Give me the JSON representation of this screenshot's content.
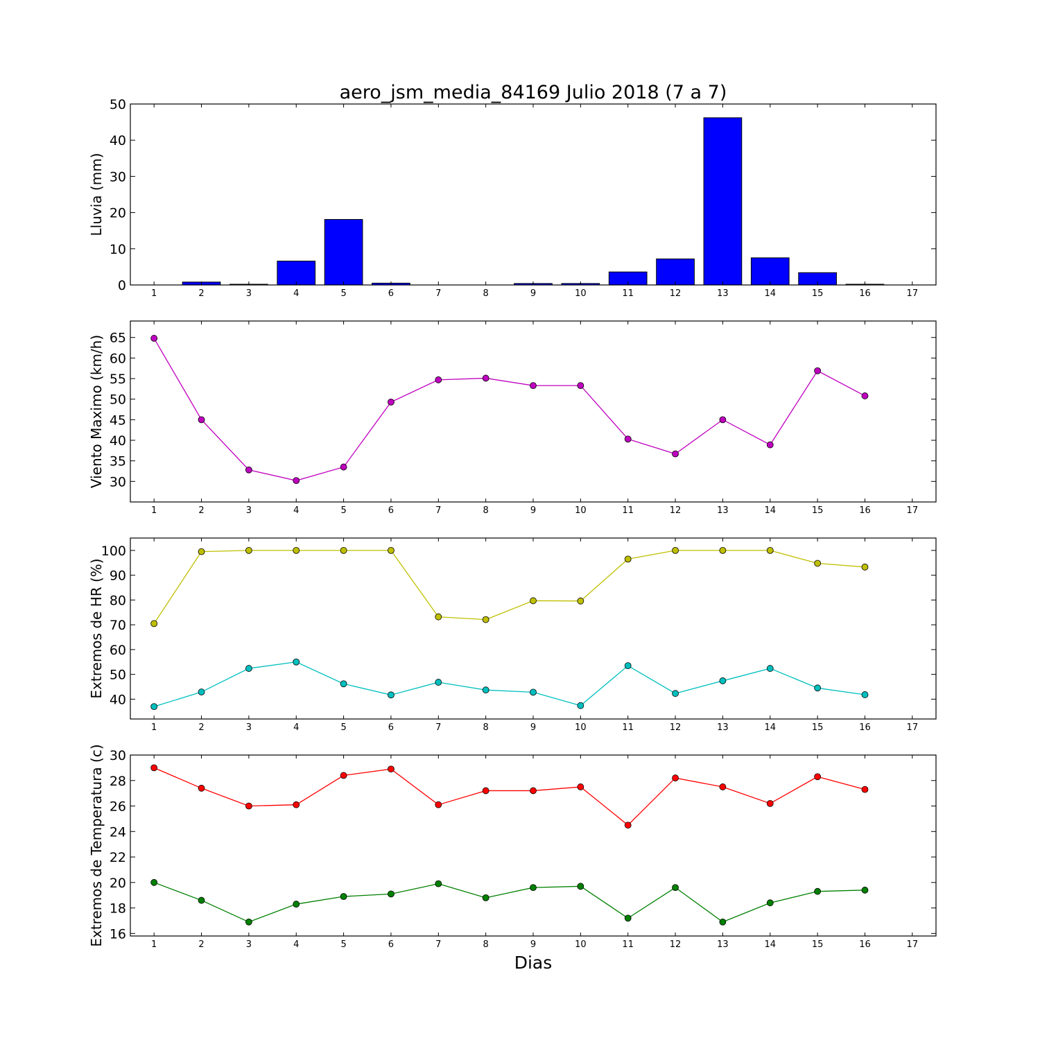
{
  "title": "aero_jsm_media_84169 Julio 2018  (7 a 7)",
  "xlabel": "Dias",
  "chart_data": [
    {
      "type": "bar",
      "ylabel": "Lluvia (mm)",
      "xlim": [
        0.5,
        17.5
      ],
      "xticks": [
        "1",
        "2",
        "3",
        "4",
        "5",
        "6",
        "7",
        "8",
        "9",
        "10",
        "11",
        "12",
        "13",
        "14",
        "15",
        "16",
        "17"
      ],
      "ylim": [
        0,
        50
      ],
      "yticks": [
        0,
        10,
        20,
        30,
        40,
        50
      ],
      "colors": {
        "bar": "#0000ff"
      },
      "categories": [
        1,
        2,
        3,
        4,
        5,
        6,
        7,
        8,
        9,
        10,
        11,
        12,
        13,
        14,
        15,
        16
      ],
      "values": [
        0,
        0.8,
        0.2,
        6.6,
        18.1,
        0.5,
        0,
        0,
        0.4,
        0.4,
        3.6,
        7.2,
        46.2,
        7.5,
        3.4,
        0.2
      ]
    },
    {
      "type": "line",
      "ylabel": "Viento Maximo (km/h)",
      "xlim": [
        0.5,
        17.5
      ],
      "xticks": [
        "1",
        "2",
        "3",
        "4",
        "5",
        "6",
        "7",
        "8",
        "9",
        "10",
        "11",
        "12",
        "13",
        "14",
        "15",
        "16",
        "17"
      ],
      "ylim": [
        25,
        69
      ],
      "yticks": [
        30,
        35,
        40,
        45,
        50,
        55,
        60,
        65
      ],
      "x": [
        1,
        2,
        3,
        4,
        5,
        6,
        7,
        8,
        9,
        10,
        11,
        12,
        13,
        14,
        15,
        16
      ],
      "series": [
        {
          "color": "#bf00bf",
          "values": [
            64.8,
            45.0,
            32.8,
            30.2,
            33.5,
            49.3,
            54.7,
            55.1,
            53.3,
            53.3,
            40.3,
            36.7,
            45.0,
            38.9,
            56.9,
            50.8
          ]
        }
      ]
    },
    {
      "type": "line",
      "ylabel": "Extremos de HR (%)",
      "xlim": [
        0.5,
        17.5
      ],
      "xticks": [
        "1",
        "2",
        "3",
        "4",
        "5",
        "6",
        "7",
        "8",
        "9",
        "10",
        "11",
        "12",
        "13",
        "14",
        "15",
        "16",
        "17"
      ],
      "ylim": [
        32,
        105
      ],
      "yticks": [
        40,
        50,
        60,
        70,
        80,
        90,
        100
      ],
      "x": [
        1,
        2,
        3,
        4,
        5,
        6,
        7,
        8,
        9,
        10,
        11,
        12,
        13,
        14,
        15,
        16
      ],
      "series": [
        {
          "color": "#bfbf00",
          "values": [
            70.5,
            99.5,
            100,
            100,
            100,
            100,
            73.2,
            72.1,
            79.7,
            79.6,
            96.5,
            100,
            100,
            100,
            94.8,
            93.3
          ]
        },
        {
          "color": "#00bfbf",
          "values": [
            37.0,
            42.9,
            52.4,
            55.0,
            46.2,
            41.7,
            46.8,
            43.7,
            42.8,
            37.4,
            53.5,
            42.3,
            47.4,
            52.4,
            44.5,
            41.8
          ]
        }
      ]
    },
    {
      "type": "line",
      "ylabel": "Extremos de Temperatura (c)",
      "xlim": [
        0.5,
        17.5
      ],
      "xticks": [
        "1",
        "2",
        "3",
        "4",
        "5",
        "6",
        "7",
        "8",
        "9",
        "10",
        "11",
        "12",
        "13",
        "14",
        "15",
        "16",
        "17"
      ],
      "ylim": [
        15.8,
        30
      ],
      "yticks": [
        16,
        18,
        20,
        22,
        24,
        26,
        28,
        30
      ],
      "x": [
        1,
        2,
        3,
        4,
        5,
        6,
        7,
        8,
        9,
        10,
        11,
        12,
        13,
        14,
        15,
        16
      ],
      "series": [
        {
          "color": "#ff0000",
          "values": [
            29.0,
            27.4,
            26.0,
            26.1,
            28.4,
            28.9,
            26.1,
            27.2,
            27.2,
            27.5,
            24.5,
            28.2,
            27.5,
            26.2,
            28.3,
            27.3
          ]
        },
        {
          "color": "#008000",
          "values": [
            20.0,
            18.6,
            16.9,
            18.3,
            18.9,
            19.1,
            19.9,
            18.8,
            19.6,
            19.7,
            17.2,
            19.6,
            16.9,
            18.4,
            19.3,
            19.4
          ]
        }
      ]
    }
  ]
}
